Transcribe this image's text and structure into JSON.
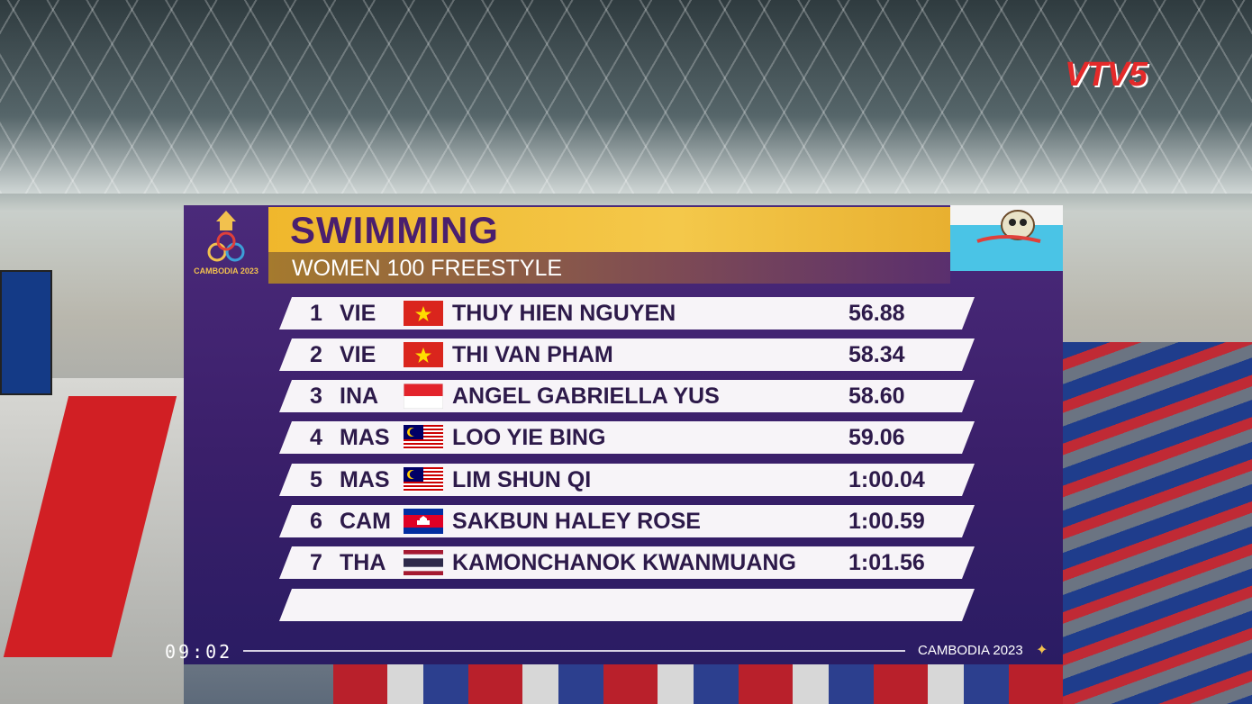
{
  "channel_logo": "VTV5",
  "event_logo": {
    "text": "CAMBODIA 2023"
  },
  "header": {
    "title": "SWIMMING",
    "subtitle": "WOMEN 100 FREESTYLE"
  },
  "results": [
    {
      "rank": 1,
      "country": "VIE",
      "name": "THUY HIEN NGUYEN",
      "time": "56.88"
    },
    {
      "rank": 2,
      "country": "VIE",
      "name": "THI VAN PHAM",
      "time": "58.34"
    },
    {
      "rank": 3,
      "country": "INA",
      "name": "ANGEL GABRIELLA YUS",
      "time": "58.60"
    },
    {
      "rank": 4,
      "country": "MAS",
      "name": "LOO YIE BING",
      "time": "59.06"
    },
    {
      "rank": 5,
      "country": "MAS",
      "name": "LIM SHUN QI",
      "time": "1:00.04"
    },
    {
      "rank": 6,
      "country": "CAM",
      "name": "SAKBUN HALEY ROSE",
      "time": "1:00.59"
    },
    {
      "rank": 7,
      "country": "THA",
      "name": "KAMONCHANOK KWANMUANG",
      "time": "1:01.56"
    }
  ],
  "footer": {
    "clock": "09:02",
    "event": "CAMBODIA 2023"
  }
}
